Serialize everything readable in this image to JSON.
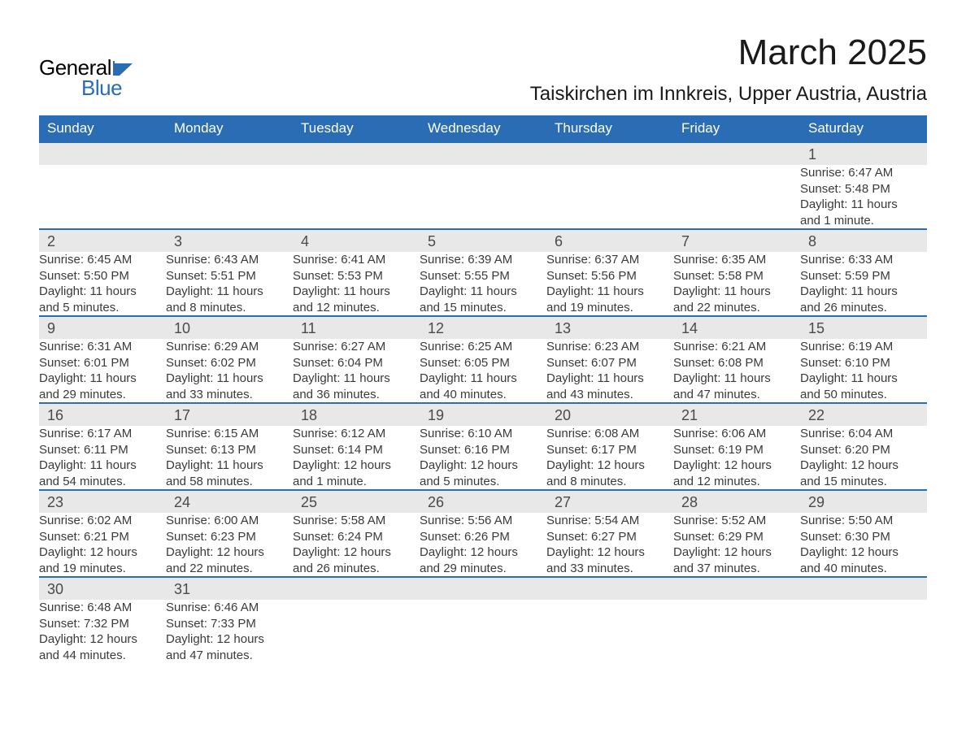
{
  "logo": {
    "text_general": "General",
    "text_blue": "Blue",
    "flag_color": "#2b6db5"
  },
  "header": {
    "month_title": "March 2025",
    "location": "Taiskirchen im Innkreis, Upper Austria, Austria"
  },
  "colors": {
    "header_bg": "#2b6db5",
    "header_text": "#ffffff",
    "day_number_bg": "#e8e8e8",
    "border": "#2b6db5",
    "text": "#3a3a3a"
  },
  "weekdays": [
    "Sunday",
    "Monday",
    "Tuesday",
    "Wednesday",
    "Thursday",
    "Friday",
    "Saturday"
  ],
  "weeks": [
    [
      null,
      null,
      null,
      null,
      null,
      null,
      {
        "day": "1",
        "sunrise": "Sunrise: 6:47 AM",
        "sunset": "Sunset: 5:48 PM",
        "daylight1": "Daylight: 11 hours",
        "daylight2": "and 1 minute."
      }
    ],
    [
      {
        "day": "2",
        "sunrise": "Sunrise: 6:45 AM",
        "sunset": "Sunset: 5:50 PM",
        "daylight1": "Daylight: 11 hours",
        "daylight2": "and 5 minutes."
      },
      {
        "day": "3",
        "sunrise": "Sunrise: 6:43 AM",
        "sunset": "Sunset: 5:51 PM",
        "daylight1": "Daylight: 11 hours",
        "daylight2": "and 8 minutes."
      },
      {
        "day": "4",
        "sunrise": "Sunrise: 6:41 AM",
        "sunset": "Sunset: 5:53 PM",
        "daylight1": "Daylight: 11 hours",
        "daylight2": "and 12 minutes."
      },
      {
        "day": "5",
        "sunrise": "Sunrise: 6:39 AM",
        "sunset": "Sunset: 5:55 PM",
        "daylight1": "Daylight: 11 hours",
        "daylight2": "and 15 minutes."
      },
      {
        "day": "6",
        "sunrise": "Sunrise: 6:37 AM",
        "sunset": "Sunset: 5:56 PM",
        "daylight1": "Daylight: 11 hours",
        "daylight2": "and 19 minutes."
      },
      {
        "day": "7",
        "sunrise": "Sunrise: 6:35 AM",
        "sunset": "Sunset: 5:58 PM",
        "daylight1": "Daylight: 11 hours",
        "daylight2": "and 22 minutes."
      },
      {
        "day": "8",
        "sunrise": "Sunrise: 6:33 AM",
        "sunset": "Sunset: 5:59 PM",
        "daylight1": "Daylight: 11 hours",
        "daylight2": "and 26 minutes."
      }
    ],
    [
      {
        "day": "9",
        "sunrise": "Sunrise: 6:31 AM",
        "sunset": "Sunset: 6:01 PM",
        "daylight1": "Daylight: 11 hours",
        "daylight2": "and 29 minutes."
      },
      {
        "day": "10",
        "sunrise": "Sunrise: 6:29 AM",
        "sunset": "Sunset: 6:02 PM",
        "daylight1": "Daylight: 11 hours",
        "daylight2": "and 33 minutes."
      },
      {
        "day": "11",
        "sunrise": "Sunrise: 6:27 AM",
        "sunset": "Sunset: 6:04 PM",
        "daylight1": "Daylight: 11 hours",
        "daylight2": "and 36 minutes."
      },
      {
        "day": "12",
        "sunrise": "Sunrise: 6:25 AM",
        "sunset": "Sunset: 6:05 PM",
        "daylight1": "Daylight: 11 hours",
        "daylight2": "and 40 minutes."
      },
      {
        "day": "13",
        "sunrise": "Sunrise: 6:23 AM",
        "sunset": "Sunset: 6:07 PM",
        "daylight1": "Daylight: 11 hours",
        "daylight2": "and 43 minutes."
      },
      {
        "day": "14",
        "sunrise": "Sunrise: 6:21 AM",
        "sunset": "Sunset: 6:08 PM",
        "daylight1": "Daylight: 11 hours",
        "daylight2": "and 47 minutes."
      },
      {
        "day": "15",
        "sunrise": "Sunrise: 6:19 AM",
        "sunset": "Sunset: 6:10 PM",
        "daylight1": "Daylight: 11 hours",
        "daylight2": "and 50 minutes."
      }
    ],
    [
      {
        "day": "16",
        "sunrise": "Sunrise: 6:17 AM",
        "sunset": "Sunset: 6:11 PM",
        "daylight1": "Daylight: 11 hours",
        "daylight2": "and 54 minutes."
      },
      {
        "day": "17",
        "sunrise": "Sunrise: 6:15 AM",
        "sunset": "Sunset: 6:13 PM",
        "daylight1": "Daylight: 11 hours",
        "daylight2": "and 58 minutes."
      },
      {
        "day": "18",
        "sunrise": "Sunrise: 6:12 AM",
        "sunset": "Sunset: 6:14 PM",
        "daylight1": "Daylight: 12 hours",
        "daylight2": "and 1 minute."
      },
      {
        "day": "19",
        "sunrise": "Sunrise: 6:10 AM",
        "sunset": "Sunset: 6:16 PM",
        "daylight1": "Daylight: 12 hours",
        "daylight2": "and 5 minutes."
      },
      {
        "day": "20",
        "sunrise": "Sunrise: 6:08 AM",
        "sunset": "Sunset: 6:17 PM",
        "daylight1": "Daylight: 12 hours",
        "daylight2": "and 8 minutes."
      },
      {
        "day": "21",
        "sunrise": "Sunrise: 6:06 AM",
        "sunset": "Sunset: 6:19 PM",
        "daylight1": "Daylight: 12 hours",
        "daylight2": "and 12 minutes."
      },
      {
        "day": "22",
        "sunrise": "Sunrise: 6:04 AM",
        "sunset": "Sunset: 6:20 PM",
        "daylight1": "Daylight: 12 hours",
        "daylight2": "and 15 minutes."
      }
    ],
    [
      {
        "day": "23",
        "sunrise": "Sunrise: 6:02 AM",
        "sunset": "Sunset: 6:21 PM",
        "daylight1": "Daylight: 12 hours",
        "daylight2": "and 19 minutes."
      },
      {
        "day": "24",
        "sunrise": "Sunrise: 6:00 AM",
        "sunset": "Sunset: 6:23 PM",
        "daylight1": "Daylight: 12 hours",
        "daylight2": "and 22 minutes."
      },
      {
        "day": "25",
        "sunrise": "Sunrise: 5:58 AM",
        "sunset": "Sunset: 6:24 PM",
        "daylight1": "Daylight: 12 hours",
        "daylight2": "and 26 minutes."
      },
      {
        "day": "26",
        "sunrise": "Sunrise: 5:56 AM",
        "sunset": "Sunset: 6:26 PM",
        "daylight1": "Daylight: 12 hours",
        "daylight2": "and 29 minutes."
      },
      {
        "day": "27",
        "sunrise": "Sunrise: 5:54 AM",
        "sunset": "Sunset: 6:27 PM",
        "daylight1": "Daylight: 12 hours",
        "daylight2": "and 33 minutes."
      },
      {
        "day": "28",
        "sunrise": "Sunrise: 5:52 AM",
        "sunset": "Sunset: 6:29 PM",
        "daylight1": "Daylight: 12 hours",
        "daylight2": "and 37 minutes."
      },
      {
        "day": "29",
        "sunrise": "Sunrise: 5:50 AM",
        "sunset": "Sunset: 6:30 PM",
        "daylight1": "Daylight: 12 hours",
        "daylight2": "and 40 minutes."
      }
    ],
    [
      {
        "day": "30",
        "sunrise": "Sunrise: 6:48 AM",
        "sunset": "Sunset: 7:32 PM",
        "daylight1": "Daylight: 12 hours",
        "daylight2": "and 44 minutes."
      },
      {
        "day": "31",
        "sunrise": "Sunrise: 6:46 AM",
        "sunset": "Sunset: 7:33 PM",
        "daylight1": "Daylight: 12 hours",
        "daylight2": "and 47 minutes."
      },
      null,
      null,
      null,
      null,
      null
    ]
  ]
}
